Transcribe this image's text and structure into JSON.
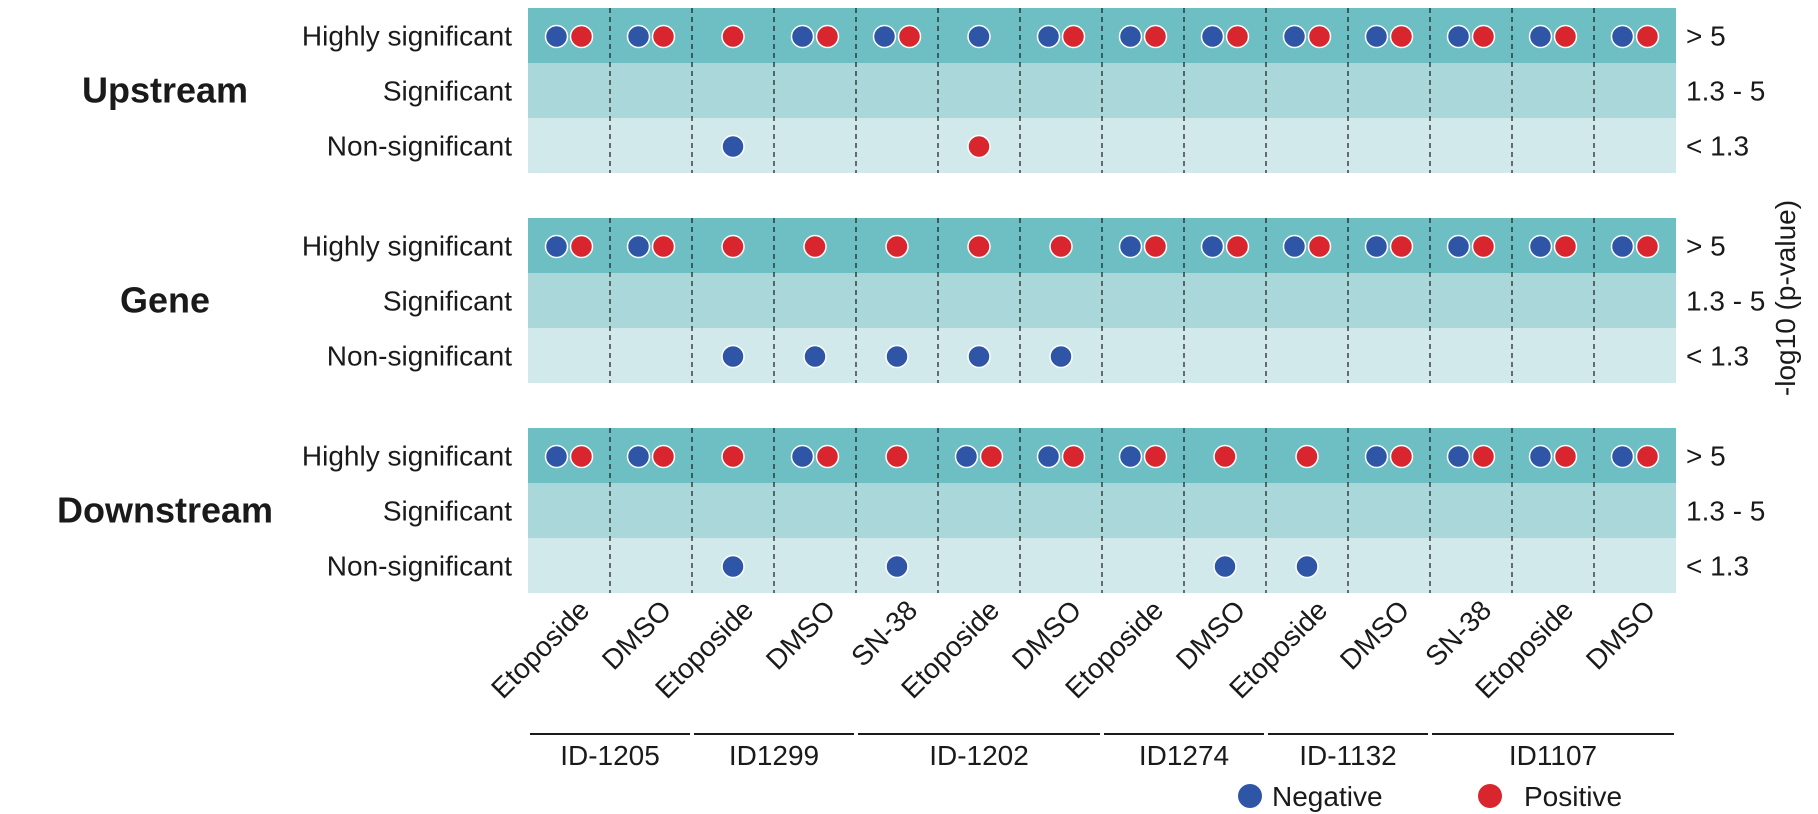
{
  "chart_data": {
    "type": "dot-matrix",
    "sections": [
      {
        "name": "Upstream",
        "cells": {
          "Highly significant": [
            [
              "neg",
              "pos"
            ],
            [
              "neg",
              "pos"
            ],
            [
              "pos"
            ],
            [
              "neg",
              "pos"
            ],
            [
              "neg",
              "pos"
            ],
            [
              "neg"
            ],
            [
              "neg",
              "pos"
            ],
            [
              "neg",
              "pos"
            ],
            [
              "neg",
              "pos"
            ],
            [
              "neg",
              "pos"
            ],
            [
              "neg",
              "pos"
            ],
            [
              "neg",
              "pos"
            ],
            [
              "neg",
              "pos"
            ],
            [
              "neg",
              "pos"
            ]
          ],
          "Significant": [
            [],
            [],
            [],
            [],
            [],
            [],
            [],
            [],
            [],
            [],
            [],
            [],
            [],
            []
          ],
          "Non-significant": [
            [],
            [],
            [
              "neg"
            ],
            [],
            [],
            [
              "pos"
            ],
            [],
            [],
            [],
            [],
            [],
            [],
            [],
            []
          ]
        }
      },
      {
        "name": "Gene",
        "cells": {
          "Highly significant": [
            [
              "neg",
              "pos"
            ],
            [
              "neg",
              "pos"
            ],
            [
              "pos"
            ],
            [
              "pos"
            ],
            [
              "pos"
            ],
            [
              "pos"
            ],
            [
              "pos"
            ],
            [
              "neg",
              "pos"
            ],
            [
              "neg",
              "pos"
            ],
            [
              "neg",
              "pos"
            ],
            [
              "neg",
              "pos"
            ],
            [
              "neg",
              "pos"
            ],
            [
              "neg",
              "pos"
            ],
            [
              "neg",
              "pos"
            ]
          ],
          "Significant": [
            [],
            [],
            [],
            [],
            [],
            [],
            [],
            [],
            [],
            [],
            [],
            [],
            [],
            []
          ],
          "Non-significant": [
            [],
            [],
            [
              "neg"
            ],
            [
              "neg"
            ],
            [
              "neg"
            ],
            [
              "neg"
            ],
            [
              "neg"
            ],
            [],
            [],
            [],
            [],
            [],
            [],
            []
          ]
        }
      },
      {
        "name": "Downstream",
        "cells": {
          "Highly significant": [
            [
              "neg",
              "pos"
            ],
            [
              "neg",
              "pos"
            ],
            [
              "pos"
            ],
            [
              "neg",
              "pos"
            ],
            [
              "pos"
            ],
            [
              "neg",
              "pos"
            ],
            [
              "neg",
              "pos"
            ],
            [
              "neg",
              "pos"
            ],
            [
              "pos"
            ],
            [
              "pos"
            ],
            [
              "neg",
              "pos"
            ],
            [
              "neg",
              "pos"
            ],
            [
              "neg",
              "pos"
            ],
            [
              "neg",
              "pos"
            ]
          ],
          "Significant": [
            [],
            [],
            [],
            [],
            [],
            [],
            [],
            [],
            [],
            [],
            [],
            [],
            [],
            []
          ],
          "Non-significant": [
            [],
            [],
            [
              "neg"
            ],
            [],
            [
              "neg"
            ],
            [],
            [],
            [],
            [
              "neg"
            ],
            [
              "neg"
            ],
            [],
            [],
            [],
            []
          ]
        }
      }
    ],
    "rows": [
      "Highly significant",
      "Significant",
      "Non-significant"
    ],
    "row_ranges": [
      "> 5",
      "1.3 - 5",
      "< 1.3"
    ],
    "conditions": [
      "Etoposide",
      "DMSO",
      "Etoposide",
      "DMSO",
      "SN-38",
      "Etoposide",
      "DMSO",
      "Etoposide",
      "DMSO",
      "Etoposide",
      "DMSO",
      "SN-38",
      "Etoposide",
      "DMSO"
    ],
    "groups": [
      {
        "label": "ID-1205",
        "columns": [
          0,
          1
        ]
      },
      {
        "label": "ID1299",
        "columns": [
          2,
          3
        ]
      },
      {
        "label": "ID-1202",
        "columns": [
          4,
          6
        ]
      },
      {
        "label": "ID1274",
        "columns": [
          7,
          8
        ]
      },
      {
        "label": "ID-1132",
        "columns": [
          9,
          10
        ]
      },
      {
        "label": "ID1107",
        "columns": [
          11,
          13
        ]
      }
    ],
    "axis_title": "-log10 (p-value)",
    "legend": [
      {
        "key": "neg",
        "label": "Negative",
        "color": "#2e55a6"
      },
      {
        "key": "pos",
        "label": "Positive",
        "color": "#d9262e"
      }
    ],
    "legend_position": "bottom-right",
    "row_colors": [
      "#6dbfc3",
      "#a9d7da",
      "#d2e9eb"
    ]
  }
}
